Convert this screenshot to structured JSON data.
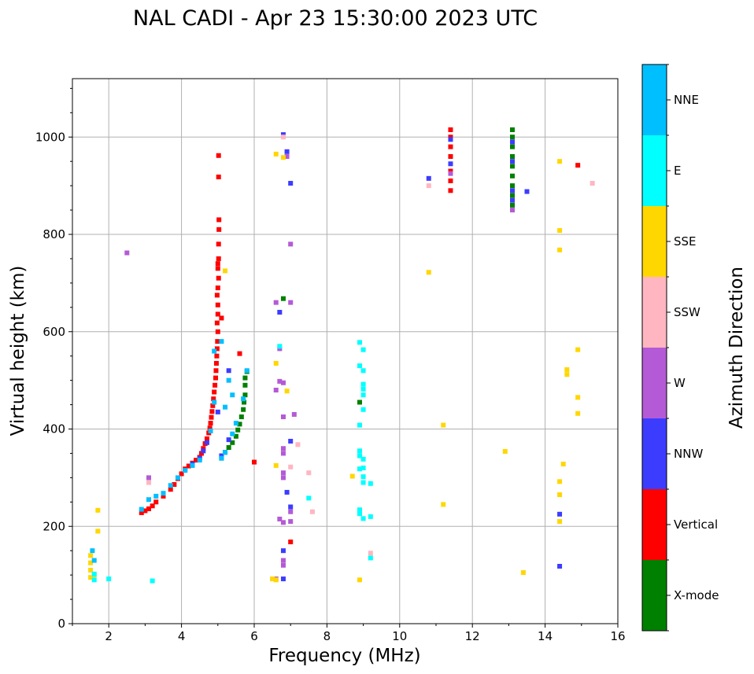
{
  "chart_data": {
    "type": "scatter",
    "title": "NAL CADI - Apr 23 15:30:00 2023 UTC",
    "xlabel": "Frequency (MHz)",
    "ylabel": "Virtual height (km)",
    "xlim": [
      1,
      16
    ],
    "ylim": [
      0,
      1120
    ],
    "x_ticks": [
      2,
      4,
      6,
      8,
      10,
      12,
      14,
      16
    ],
    "y_ticks": [
      0,
      200,
      400,
      600,
      800,
      1000
    ],
    "grid": true,
    "colorbar": {
      "label": "Azimuth Direction",
      "placement": "right",
      "categories": [
        {
          "name": "X-mode",
          "color": "#008000"
        },
        {
          "name": "Vertical",
          "color": "#ff0000"
        },
        {
          "name": "NNW",
          "color": "#3c3cff"
        },
        {
          "name": "W",
          "color": "#b45ad6"
        },
        {
          "name": "SSW",
          "color": "#ffb6c1"
        },
        {
          "name": "SSE",
          "color": "#ffd700"
        },
        {
          "name": "E",
          "color": "#00ffff"
        },
        {
          "name": "NNE",
          "color": "#00bfff"
        }
      ]
    },
    "series": [
      {
        "name": "Vertical",
        "points": [
          [
            2.9,
            228
          ],
          [
            3.0,
            232
          ],
          [
            3.1,
            236
          ],
          [
            3.2,
            242
          ],
          [
            3.3,
            250
          ],
          [
            3.5,
            262
          ],
          [
            3.7,
            276
          ],
          [
            3.8,
            286
          ],
          [
            3.9,
            298
          ],
          [
            4.0,
            308
          ],
          [
            4.1,
            318
          ],
          [
            4.2,
            324
          ],
          [
            4.3,
            330
          ],
          [
            4.4,
            336
          ],
          [
            4.5,
            342
          ],
          [
            4.55,
            350
          ],
          [
            4.6,
            360
          ],
          [
            4.65,
            370
          ],
          [
            4.7,
            380
          ],
          [
            4.75,
            392
          ],
          [
            4.78,
            402
          ],
          [
            4.8,
            412
          ],
          [
            4.82,
            424
          ],
          [
            4.84,
            436
          ],
          [
            4.86,
            448
          ],
          [
            4.88,
            462
          ],
          [
            4.9,
            476
          ],
          [
            4.92,
            490
          ],
          [
            4.94,
            505
          ],
          [
            4.95,
            520
          ],
          [
            4.96,
            535
          ],
          [
            4.97,
            550
          ],
          [
            4.98,
            565
          ],
          [
            4.99,
            580
          ],
          [
            5.0,
            600
          ],
          [
            4.98,
            618
          ],
          [
            5.0,
            636
          ],
          [
            5.0,
            655
          ],
          [
            4.98,
            675
          ],
          [
            5.0,
            690
          ],
          [
            5.02,
            710
          ],
          [
            5.0,
            730
          ],
          [
            5.02,
            750
          ],
          [
            5.02,
            780
          ],
          [
            5.03,
            810
          ],
          [
            5.03,
            830
          ],
          [
            5.02,
            918
          ],
          [
            5.02,
            962
          ],
          [
            5.0,
            740
          ],
          [
            5.1,
            628
          ],
          [
            11.4,
            890
          ],
          [
            11.4,
            910
          ],
          [
            11.4,
            930
          ],
          [
            11.4,
            960
          ],
          [
            11.4,
            980
          ],
          [
            11.4,
            1000
          ],
          [
            11.4,
            1015
          ],
          [
            14.9,
            942
          ],
          [
            7.0,
            168
          ],
          [
            6.0,
            332
          ],
          [
            5.6,
            555
          ]
        ]
      },
      {
        "name": "X-mode",
        "points": [
          [
            5.1,
            340
          ],
          [
            5.2,
            352
          ],
          [
            5.3,
            362
          ],
          [
            5.4,
            372
          ],
          [
            5.5,
            385
          ],
          [
            5.55,
            398
          ],
          [
            5.6,
            410
          ],
          [
            5.65,
            425
          ],
          [
            5.7,
            440
          ],
          [
            5.72,
            455
          ],
          [
            5.75,
            470
          ],
          [
            5.75,
            490
          ],
          [
            5.75,
            505
          ],
          [
            5.8,
            518
          ],
          [
            6.8,
            668
          ],
          [
            8.9,
            455
          ],
          [
            13.1,
            860
          ],
          [
            13.1,
            880
          ],
          [
            13.1,
            900
          ],
          [
            13.1,
            920
          ],
          [
            13.1,
            940
          ],
          [
            13.1,
            960
          ],
          [
            13.1,
            980
          ],
          [
            13.1,
            1000
          ],
          [
            13.1,
            1015
          ]
        ]
      },
      {
        "name": "NNW",
        "points": [
          [
            4.3,
            328
          ],
          [
            4.5,
            340
          ],
          [
            4.6,
            355
          ],
          [
            4.7,
            372
          ],
          [
            5.1,
            345
          ],
          [
            5.3,
            378
          ],
          [
            6.7,
            640
          ],
          [
            6.8,
            150
          ],
          [
            6.8,
            92
          ],
          [
            7.0,
            375
          ],
          [
            7.0,
            905
          ],
          [
            6.9,
            970
          ],
          [
            6.8,
            1005
          ],
          [
            6.9,
            270
          ],
          [
            7.0,
            240
          ],
          [
            10.8,
            915
          ],
          [
            11.4,
            945
          ],
          [
            11.4,
            995
          ],
          [
            13.1,
            870
          ],
          [
            13.1,
            890
          ],
          [
            13.1,
            950
          ],
          [
            13.1,
            990
          ],
          [
            13.5,
            888
          ],
          [
            14.4,
            118
          ],
          [
            14.4,
            225
          ],
          [
            5.0,
            435
          ],
          [
            5.3,
            520
          ]
        ]
      },
      {
        "name": "W",
        "points": [
          [
            2.5,
            762
          ],
          [
            3.1,
            300
          ],
          [
            6.6,
            660
          ],
          [
            6.7,
            498
          ],
          [
            6.8,
            495
          ],
          [
            6.8,
            360
          ],
          [
            6.8,
            350
          ],
          [
            6.8,
            310
          ],
          [
            6.8,
            300
          ],
          [
            6.7,
            215
          ],
          [
            6.8,
            208
          ],
          [
            6.8,
            130
          ],
          [
            6.8,
            120
          ],
          [
            7.0,
            230
          ],
          [
            7.0,
            210
          ],
          [
            7.0,
            780
          ],
          [
            6.9,
            960
          ],
          [
            7.0,
            660
          ],
          [
            13.1,
            850
          ],
          [
            11.4,
            925
          ],
          [
            6.7,
            565
          ],
          [
            7.1,
            430
          ],
          [
            6.6,
            480
          ],
          [
            6.8,
            425
          ],
          [
            6.6,
            92
          ]
        ]
      },
      {
        "name": "SSW",
        "points": [
          [
            3.1,
            290
          ],
          [
            7.5,
            310
          ],
          [
            7.6,
            230
          ],
          [
            7.2,
            368
          ],
          [
            7.0,
            322
          ],
          [
            10.8,
            900
          ],
          [
            15.3,
            905
          ],
          [
            9.2,
            145
          ],
          [
            6.8,
            1000
          ]
        ]
      },
      {
        "name": "SSE",
        "points": [
          [
            1.5,
            95
          ],
          [
            1.5,
            110
          ],
          [
            1.5,
            125
          ],
          [
            1.5,
            140
          ],
          [
            1.6,
            100
          ],
          [
            1.7,
            190
          ],
          [
            1.7,
            233
          ],
          [
            6.6,
            535
          ],
          [
            6.5,
            92
          ],
          [
            6.6,
            90
          ],
          [
            6.6,
            325
          ],
          [
            6.9,
            478
          ],
          [
            6.6,
            965
          ],
          [
            6.8,
            958
          ],
          [
            8.7,
            303
          ],
          [
            8.9,
            90
          ],
          [
            10.8,
            722
          ],
          [
            11.2,
            408
          ],
          [
            11.2,
            245
          ],
          [
            12.9,
            354
          ],
          [
            13.4,
            105
          ],
          [
            14.4,
            210
          ],
          [
            14.4,
            265
          ],
          [
            14.4,
            292
          ],
          [
            14.5,
            328
          ],
          [
            14.4,
            768
          ],
          [
            14.4,
            808
          ],
          [
            14.4,
            950
          ],
          [
            14.6,
            512
          ],
          [
            14.6,
            522
          ],
          [
            14.9,
            563
          ],
          [
            14.9,
            465
          ],
          [
            14.9,
            432
          ],
          [
            5.2,
            725
          ]
        ]
      },
      {
        "name": "E",
        "points": [
          [
            1.6,
            90
          ],
          [
            1.6,
            102
          ],
          [
            2.0,
            92
          ],
          [
            3.2,
            88
          ],
          [
            8.9,
            578
          ],
          [
            9.0,
            563
          ],
          [
            8.9,
            530
          ],
          [
            9.0,
            520
          ],
          [
            9.0,
            492
          ],
          [
            9.0,
            482
          ],
          [
            9.0,
            470
          ],
          [
            9.0,
            440
          ],
          [
            8.9,
            408
          ],
          [
            8.9,
            355
          ],
          [
            8.9,
            345
          ],
          [
            9.0,
            338
          ],
          [
            9.0,
            320
          ],
          [
            8.9,
            318
          ],
          [
            9.0,
            302
          ],
          [
            9.0,
            290
          ],
          [
            9.2,
            288
          ],
          [
            8.9,
            234
          ],
          [
            8.9,
            226
          ],
          [
            9.0,
            216
          ],
          [
            9.2,
            220
          ],
          [
            9.2,
            135
          ],
          [
            7.5,
            258
          ],
          [
            6.7,
            570
          ]
        ]
      },
      {
        "name": "NNE",
        "points": [
          [
            1.55,
            150
          ],
          [
            1.6,
            130
          ],
          [
            2.9,
            235
          ],
          [
            3.1,
            255
          ],
          [
            3.3,
            262
          ],
          [
            3.5,
            268
          ],
          [
            3.7,
            284
          ],
          [
            3.9,
            300
          ],
          [
            4.1,
            315
          ],
          [
            4.3,
            325
          ],
          [
            4.5,
            336
          ],
          [
            4.8,
            396
          ],
          [
            4.9,
            455
          ],
          [
            5.1,
            340
          ],
          [
            5.2,
            352
          ],
          [
            5.4,
            390
          ],
          [
            5.5,
            412
          ],
          [
            5.7,
            462
          ],
          [
            5.8,
            520
          ],
          [
            5.2,
            445
          ],
          [
            5.3,
            500
          ],
          [
            5.4,
            470
          ],
          [
            4.9,
            560
          ],
          [
            5.1,
            580
          ]
        ]
      }
    ]
  }
}
